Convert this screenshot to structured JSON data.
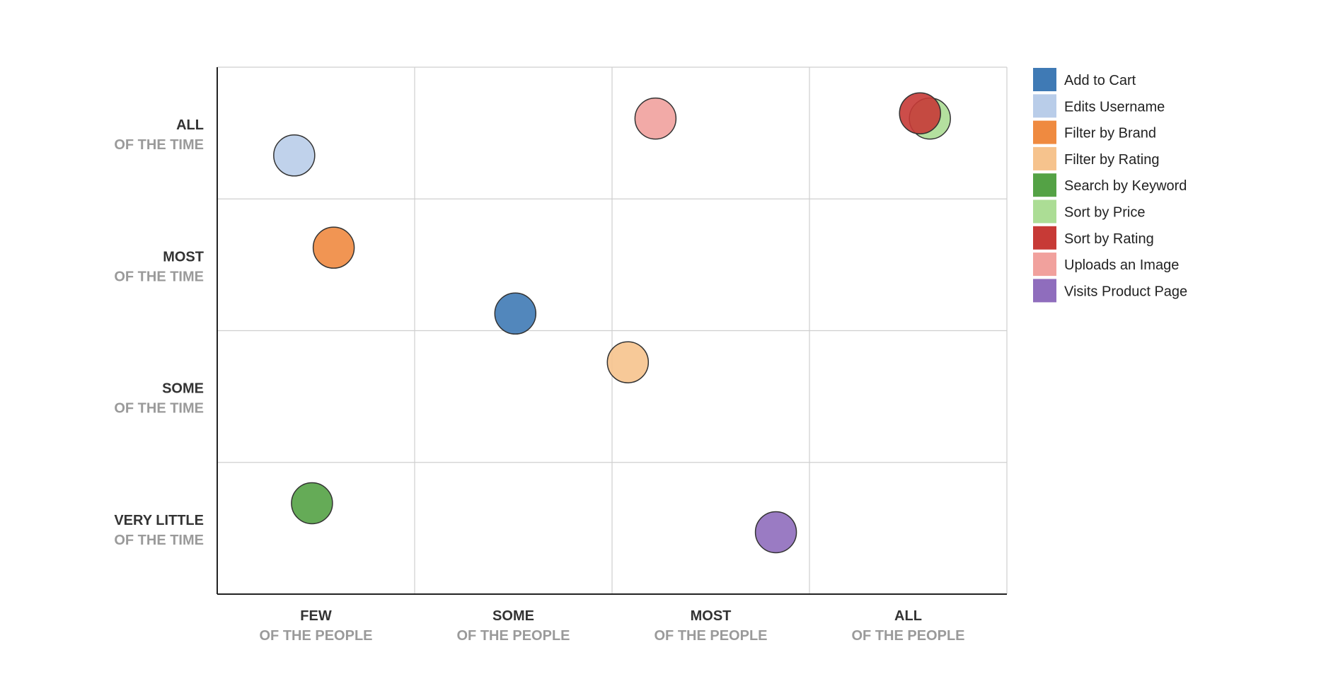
{
  "chart_data": {
    "type": "scatter",
    "title": "",
    "x_categories": [
      {
        "main": "FEW",
        "sub": "OF THE PEOPLE"
      },
      {
        "main": "SOME",
        "sub": "OF THE PEOPLE"
      },
      {
        "main": "MOST",
        "sub": "OF THE PEOPLE"
      },
      {
        "main": "ALL",
        "sub": "OF THE PEOPLE"
      }
    ],
    "y_categories": [
      {
        "main": "VERY LITTLE",
        "sub": "OF THE TIME"
      },
      {
        "main": "SOME",
        "sub": "OF THE TIME"
      },
      {
        "main": "MOST",
        "sub": "OF THE TIME"
      },
      {
        "main": "ALL",
        "sub": "OF THE TIME"
      }
    ],
    "xlim": [
      0,
      4
    ],
    "ylim": [
      0,
      4
    ],
    "grid": true,
    "legend_position": "right",
    "series": [
      {
        "name": "Add to Cart",
        "color": "#3f7ab5",
        "x": 1.51,
        "y": 2.13
      },
      {
        "name": "Edits Username",
        "color": "#b9cde9",
        "x": 0.39,
        "y": 3.33
      },
      {
        "name": "Filter by Brand",
        "color": "#ef8a40",
        "x": 0.59,
        "y": 2.63
      },
      {
        "name": "Filter by Rating",
        "color": "#f6c38d",
        "x": 2.08,
        "y": 1.76
      },
      {
        "name": "Search by Keyword",
        "color": "#54a245",
        "x": 0.48,
        "y": 0.69
      },
      {
        "name": "Sort by Price",
        "color": "#acdd95",
        "x": 3.61,
        "y": 3.61
      },
      {
        "name": "Sort by Rating",
        "color": "#c73a36",
        "x": 3.56,
        "y": 3.65
      },
      {
        "name": "Uploads an Image",
        "color": "#f1a19d",
        "x": 2.22,
        "y": 3.61
      },
      {
        "name": "Visits Product Page",
        "color": "#8f6dbd",
        "x": 2.83,
        "y": 0.47
      }
    ]
  }
}
